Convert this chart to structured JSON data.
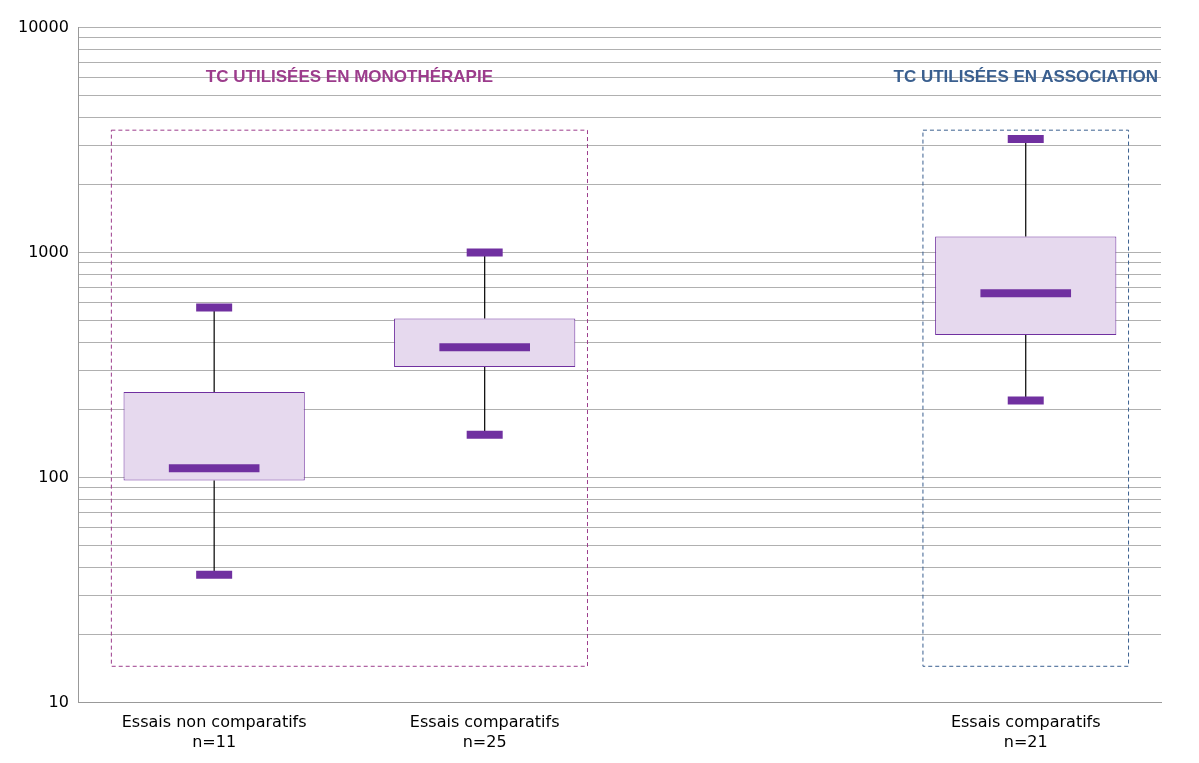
{
  "chart_data": {
    "type": "box",
    "categories": [
      "Essais non comparatifs\nn=11",
      "Essais comparatifs\nn=25",
      null,
      "Essais comparatifs\nn=21"
    ],
    "boxes": [
      {
        "low": 37,
        "q1": 97,
        "median": 110,
        "q3": 240,
        "high": 570
      },
      {
        "low": 155,
        "q1": 310,
        "median": 380,
        "q3": 510,
        "high": 1000
      },
      null,
      {
        "low": 220,
        "q1": 430,
        "median": 660,
        "q3": 1180,
        "high": 3200
      }
    ],
    "color": "#7030a0",
    "log": true,
    "ylim": [
      10,
      10000
    ],
    "yticks": [
      10,
      {
        "value": 20,
        "label": null
      },
      {
        "value": 30,
        "label": null
      },
      {
        "value": 40,
        "label": null
      },
      {
        "value": 50,
        "label": null
      },
      {
        "value": 60,
        "label": null
      },
      {
        "value": 70,
        "label": null
      },
      {
        "value": 80,
        "label": null
      },
      {
        "value": 90,
        "label": null
      },
      100,
      {
        "value": 200,
        "label": null
      },
      {
        "value": 300,
        "label": null
      },
      {
        "value": 400,
        "label": null
      },
      {
        "value": 500,
        "label": null
      },
      {
        "value": 600,
        "label": null
      },
      {
        "value": 700,
        "label": null
      },
      {
        "value": 800,
        "label": null
      },
      {
        "value": 900,
        "label": null
      },
      1000,
      {
        "value": 2000,
        "label": null
      },
      {
        "value": 3000,
        "label": null
      },
      {
        "value": 4000,
        "label": null
      },
      {
        "value": 5000,
        "label": null
      },
      {
        "value": 6000,
        "label": null
      },
      {
        "value": 7000,
        "label": null
      },
      {
        "value": 8000,
        "label": null
      },
      {
        "value": 9000,
        "label": null
      },
      10000
    ],
    "grid": "y",
    "legend": false,
    "annotations": [
      "TC UTILISÉES EN MONOTHÉRAPIE",
      "TC UTILISÉES EN ASSOCIATION"
    ]
  }
}
